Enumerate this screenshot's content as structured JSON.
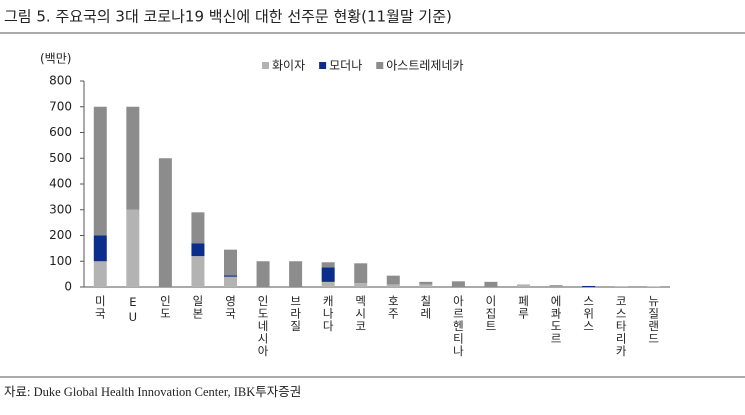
{
  "chart_data": {
    "type": "stacked_bar",
    "title": "그림 5. 주요국의 3대 코로나19 백신에 대한 선주문 현황(11월말 기준)",
    "y_label": "(백만)",
    "source": "자료: Duke Global Health Innovation Center, IBK투자증권",
    "categories": [
      "미국",
      "EU",
      "인도",
      "일본",
      "영국",
      "인도네시아",
      "브라질",
      "캐나다",
      "멕시코",
      "호주",
      "칠레",
      "아르헨티나",
      "이집트",
      "페루",
      "에콰도르",
      "스위스",
      "코스타리카",
      "뉴질랜드"
    ],
    "series": [
      {
        "name": "화이자",
        "color": "#b3b3b3",
        "values": [
          100,
          300,
          0,
          120,
          40,
          0,
          0,
          20,
          15,
          10,
          10,
          0,
          0,
          10,
          2,
          0,
          3,
          1.5
        ]
      },
      {
        "name": "모더나",
        "color": "#0b2d8c",
        "values": [
          100,
          0,
          0,
          50,
          5,
          0,
          0,
          56,
          0,
          0,
          0,
          0,
          0,
          0,
          0,
          4,
          0,
          0
        ]
      },
      {
        "name": "아스트레제네카",
        "color": "#8c8c8c",
        "values": [
          500,
          400,
          500,
          120,
          100,
          100,
          100,
          20,
          77,
          34,
          10,
          22,
          20,
          0,
          5,
          0,
          0,
          0
        ]
      }
    ],
    "ylim": [
      0,
      800
    ],
    "yticks": [
      0,
      100,
      200,
      300,
      400,
      500,
      600,
      700,
      800
    ]
  }
}
